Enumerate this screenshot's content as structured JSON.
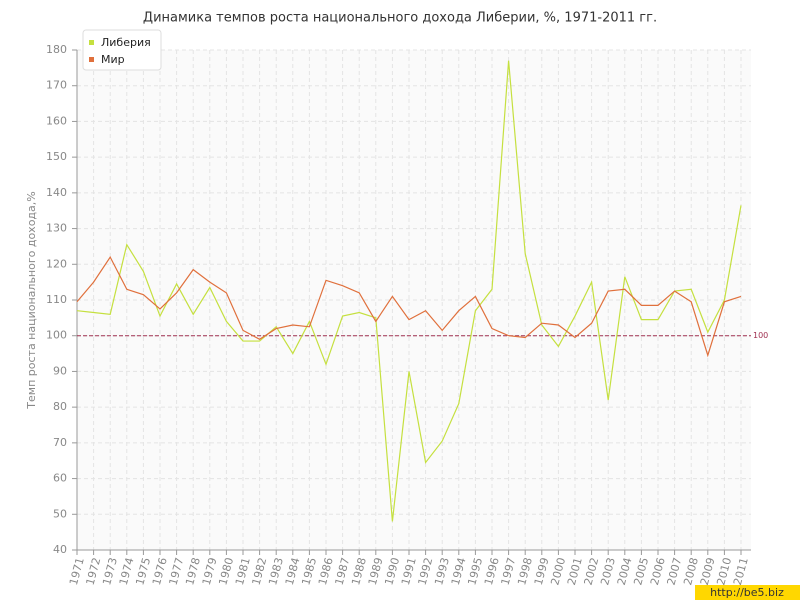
{
  "chart_data": {
    "type": "line",
    "title": "Динамика темпов роста национального дохода Либерии, %, 1971-2011 гг.",
    "y_label": "Темп роста национального дохода,%",
    "categories": [
      "1971",
      "1972",
      "1973",
      "1974",
      "1975",
      "1976",
      "1977",
      "1978",
      "1979",
      "1980",
      "1981",
      "1982",
      "1983",
      "1984",
      "1985",
      "1986",
      "1987",
      "1988",
      "1989",
      "1990",
      "1991",
      "1992",
      "1993",
      "1994",
      "1995",
      "1996",
      "1997",
      "1998",
      "1999",
      "2000",
      "2001",
      "2002",
      "2003",
      "2004",
      "2005",
      "2006",
      "2007",
      "2008",
      "2009",
      "2010",
      "2011"
    ],
    "series": [
      {
        "name": "Либерия",
        "color": "#c5e03f",
        "values": [
          107,
          106.5,
          106,
          125.5,
          118,
          105.5,
          114.5,
          106,
          113.5,
          104,
          98.5,
          98.5,
          102.5,
          95,
          104,
          92,
          105.5,
          106.5,
          105,
          48,
          90,
          64.5,
          70.5,
          81,
          107,
          113,
          177,
          123,
          103,
          97,
          105.5,
          115,
          82,
          116.5,
          104.5,
          104.5,
          112.5,
          113,
          101,
          110,
          136.5
        ]
      },
      {
        "name": "Мир",
        "color": "#e0703c",
        "values": [
          109.5,
          115,
          122,
          113,
          111.5,
          107.5,
          112,
          118.5,
          115,
          112,
          101.5,
          99,
          102,
          103,
          102.5,
          115.5,
          114,
          112,
          104,
          111,
          104.5,
          107,
          101.5,
          107,
          111,
          102,
          100,
          99.5,
          103.5,
          103,
          99.5,
          103.5,
          112.5,
          113,
          108.5,
          108.5,
          112.5,
          109.5,
          94.5,
          109.5,
          111
        ]
      }
    ],
    "ylim": [
      40,
      180
    ],
    "yticks": [
      40,
      50,
      60,
      70,
      80,
      90,
      100,
      110,
      120,
      130,
      140,
      150,
      160,
      170,
      180
    ],
    "grid": true,
    "reference_line": 100,
    "reference_color": "#a03050",
    "legend_position": "top-left",
    "watermark": "http://be5.biz"
  }
}
